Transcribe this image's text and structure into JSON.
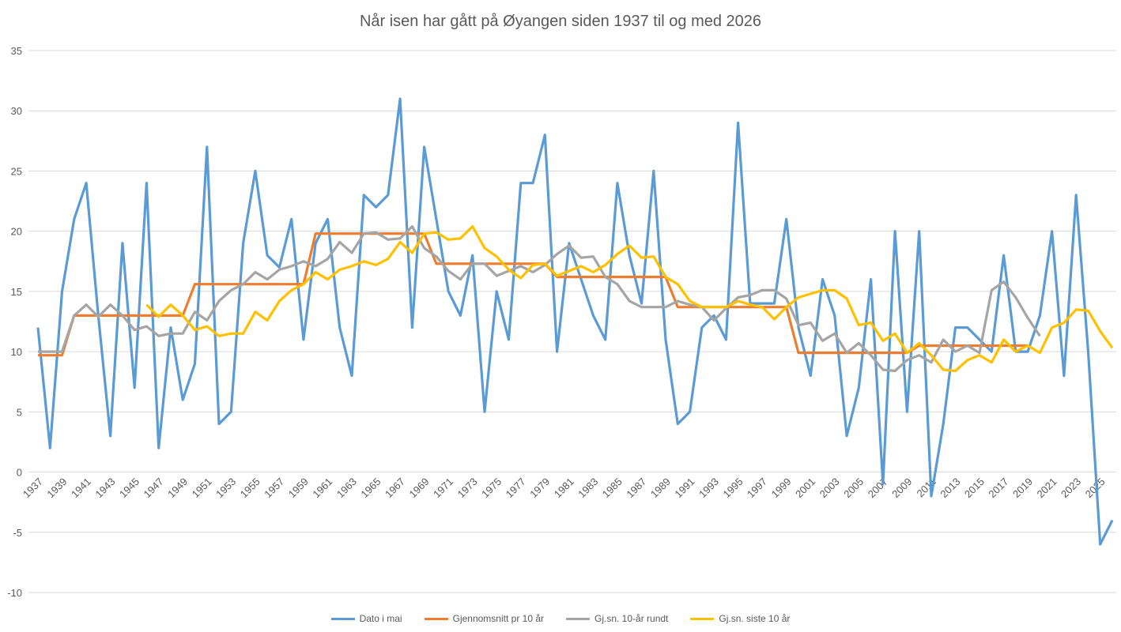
{
  "chart_data": {
    "type": "line",
    "title": "Når isen har gått på Øyangen siden 1937 til og med 2026",
    "xlabel": "",
    "ylabel": "",
    "ylim": [
      -10,
      35
    ],
    "yticks": [
      -10,
      -5,
      0,
      5,
      10,
      15,
      20,
      25,
      30,
      35
    ],
    "x_start": 1937,
    "x_end": 2026,
    "xtick_step": 2,
    "grid": true,
    "legend_position": "bottom",
    "series": [
      {
        "name": "Dato i mai",
        "color": "#5B9BD5",
        "start": 1937,
        "values": [
          12,
          2,
          15,
          21,
          24,
          13,
          3,
          19,
          7,
          24,
          2,
          12,
          6,
          9,
          27,
          4,
          5,
          19,
          25,
          18,
          17,
          21,
          11,
          19,
          21,
          12,
          8,
          23,
          22,
          23,
          31,
          12,
          27,
          21,
          15,
          13,
          18,
          5,
          15,
          11,
          24,
          24,
          28,
          10,
          19,
          16,
          13,
          11,
          24,
          18,
          14,
          25,
          11,
          4,
          5,
          12,
          13,
          11,
          29,
          14,
          14,
          14,
          21,
          12,
          8,
          16,
          13,
          3,
          7,
          16,
          -1,
          20,
          5,
          20,
          -2,
          4,
          12,
          12,
          11,
          10,
          18,
          10,
          10,
          13,
          20,
          8,
          23,
          10,
          -6,
          -4
        ]
      },
      {
        "name": "Gjennomsnitt pr 10 år",
        "color": "#ED7D31",
        "start": 1937,
        "values": [
          9.7,
          9.7,
          9.7,
          13,
          13,
          13,
          13,
          13,
          13,
          13,
          13,
          13,
          13,
          15.6,
          15.6,
          15.6,
          15.6,
          15.6,
          15.6,
          15.6,
          15.6,
          15.6,
          15.6,
          19.8,
          19.8,
          19.8,
          19.8,
          19.8,
          19.8,
          19.8,
          19.8,
          19.8,
          19.8,
          17.3,
          17.3,
          17.3,
          17.3,
          17.3,
          17.3,
          17.3,
          17.3,
          17.3,
          17.3,
          16.2,
          16.2,
          16.2,
          16.2,
          16.2,
          16.2,
          16.2,
          16.2,
          16.2,
          16.2,
          13.7,
          13.7,
          13.7,
          13.7,
          13.7,
          13.7,
          13.7,
          13.7,
          13.7,
          13.7,
          9.9,
          9.9,
          9.9,
          9.9,
          9.9,
          9.9,
          9.9,
          9.9,
          9.9,
          9.9,
          10.5,
          10.5,
          10.5,
          10.5,
          10.5,
          10.5,
          10.5,
          10.5,
          10.5,
          10.5
        ]
      },
      {
        "name": "Gj.sn. 10-år rundt",
        "color": "#A5A5A5",
        "start": 1937,
        "values": [
          10,
          10,
          10,
          13,
          13.9,
          12.9,
          13.9,
          13,
          11.8,
          12.1,
          11.3,
          11.5,
          11.5,
          13.3,
          12.6,
          14.2,
          15.1,
          15.6,
          16.6,
          16,
          16.8,
          17.1,
          17.5,
          17.1,
          17.7,
          19.1,
          18.2,
          19.8,
          19.9,
          19.3,
          19.4,
          20.4,
          18.6,
          17.9,
          16.7,
          16,
          17.3,
          17.3,
          16.3,
          16.7,
          17.1,
          16.6,
          17.2,
          18.1,
          18.8,
          17.8,
          17.9,
          16.2,
          15.6,
          14.2,
          13.7,
          13.7,
          13.7,
          14.2,
          13.9,
          13.7,
          12.6,
          13.6,
          14.5,
          14.7,
          15.1,
          15.1,
          14.4,
          12.2,
          12.4,
          10.9,
          11.5,
          9.9,
          10.7,
          9.7,
          8.5,
          8.4,
          9.3,
          9.7,
          9.1,
          11,
          10,
          10.5,
          9.9,
          15.1,
          15.8,
          14.5,
          12.8,
          11.3
        ]
      },
      {
        "name": "Gj.sn. siste 10 år",
        "color": "#FFC000",
        "start": 1946,
        "values": [
          13.9,
          12.9,
          13.9,
          13,
          11.8,
          12.1,
          11.3,
          11.5,
          11.5,
          13.3,
          12.6,
          14.2,
          15.1,
          15.6,
          16.6,
          16,
          16.8,
          17.1,
          17.5,
          17.2,
          17.7,
          19.1,
          18.2,
          19.8,
          19.9,
          19.3,
          19.4,
          20.4,
          18.6,
          17.9,
          16.8,
          16.1,
          17.2,
          17.3,
          16.3,
          16.7,
          17.1,
          16.6,
          17.2,
          18.1,
          18.8,
          17.8,
          17.9,
          16.2,
          15.6,
          14.2,
          13.7,
          13.7,
          13.7,
          14.2,
          13.9,
          13.7,
          12.7,
          13.7,
          14.5,
          14.8,
          15.1,
          15.1,
          14.4,
          12.2,
          12.4,
          10.9,
          11.5,
          9.9,
          10.7,
          9.7,
          8.5,
          8.4,
          9.3,
          9.7,
          9.1,
          11,
          10,
          10.5,
          9.9,
          12,
          12.4,
          13.5,
          13.4,
          11.7,
          10.3
        ]
      }
    ]
  }
}
